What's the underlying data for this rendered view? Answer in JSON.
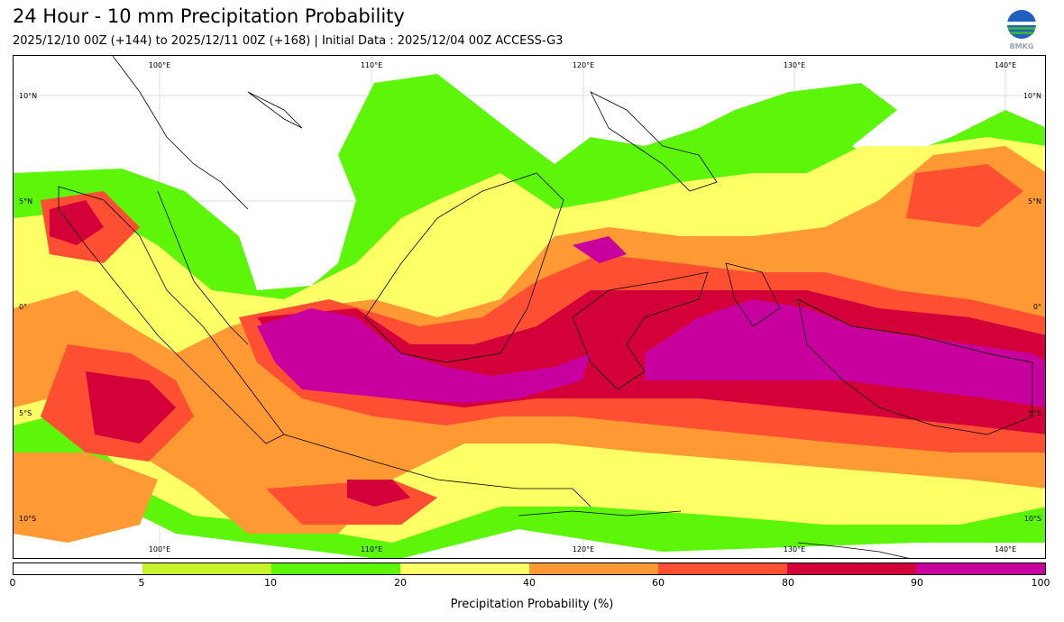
{
  "header": {
    "title": "24 Hour - 10 mm Precipitation Probability",
    "subtitle": "2025/12/10 00Z (+144) to 2025/12/11 00Z (+168) | Initial Data : 2025/12/04 00Z ACCESS-G3",
    "logo_text": "BMKG"
  },
  "map": {
    "lon_labels": [
      "100°E",
      "110°E",
      "120°E",
      "130°E",
      "140°E"
    ],
    "lat_labels": [
      "10°N",
      "5°N",
      "0°",
      "5°S",
      "10°S"
    ]
  },
  "colorbar": {
    "ticks": [
      "0",
      "5",
      "10",
      "20",
      "40",
      "60",
      "80",
      "90",
      "100"
    ],
    "colors": [
      "#ffffff",
      "#c8f22b",
      "#5df50a",
      "#ffff66",
      "#ff9933",
      "#ff4f33",
      "#d4003a",
      "#c7009e"
    ],
    "label": "Precipitation Probability (%)"
  }
}
